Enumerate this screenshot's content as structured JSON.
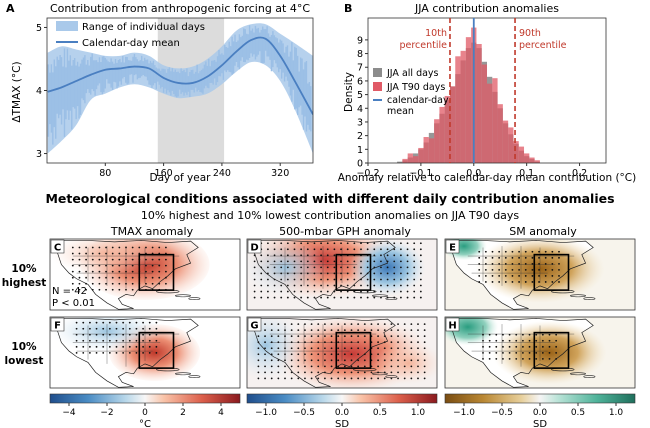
{
  "colors": {
    "range_fill": "#a9c9ea",
    "mean_line": "#4a7fc1",
    "shade": "#dcdcdc",
    "all_days": "#8c8c8c",
    "t90_days": "#e05a66",
    "percentile_line": "#c0392b",
    "zero_line": "#4a7fc1",
    "tmax_red": "#b2182b",
    "tmax_blue": "#2166ac",
    "sm_brown": "#a6711e",
    "sm_green": "#2a9d80"
  },
  "chart_data": [
    {
      "panel": "A",
      "type": "line",
      "title": "Contribution from anthropogenic forcing at 4°C",
      "xlabel": "Day of year",
      "ylabel": "ΔTMAX (°C)",
      "xlim": [
        0,
        365
      ],
      "ylim": [
        2.85,
        5.15
      ],
      "xticks": [
        80,
        160,
        240,
        320
      ],
      "yticks": [
        3,
        4,
        5
      ],
      "shaded_span": [
        152,
        243
      ],
      "legend": [
        "Range of individual days",
        "Calendar-day mean"
      ],
      "x": [
        1,
        20,
        40,
        60,
        80,
        100,
        120,
        140,
        160,
        180,
        200,
        220,
        240,
        260,
        280,
        300,
        320,
        340,
        365
      ],
      "series": [
        {
          "name": "Calendar-day mean",
          "values": [
            3.98,
            4.05,
            4.15,
            4.25,
            4.33,
            4.35,
            4.38,
            4.35,
            4.2,
            4.12,
            4.12,
            4.22,
            4.4,
            4.62,
            4.8,
            4.82,
            4.55,
            4.15,
            3.62
          ]
        },
        {
          "name": "Range of individual days (upper)",
          "values": [
            4.6,
            4.7,
            4.65,
            4.6,
            4.55,
            4.55,
            4.6,
            4.55,
            4.4,
            4.35,
            4.38,
            4.5,
            4.7,
            4.95,
            5.05,
            5.05,
            4.9,
            4.75,
            4.55
          ]
        },
        {
          "name": "Range of individual days (lower)",
          "values": [
            3.0,
            3.2,
            3.45,
            3.85,
            3.95,
            4.05,
            4.1,
            4.05,
            3.95,
            3.88,
            3.9,
            3.95,
            4.1,
            4.3,
            4.45,
            4.4,
            4.15,
            3.7,
            3.0
          ]
        }
      ]
    },
    {
      "panel": "B",
      "type": "bar",
      "title": "JJA contribution anomalies",
      "xlabel": "Anomaly relative to calendar-day mean contribution (°C)",
      "ylabel": "Density",
      "xlim": [
        -0.2,
        0.25
      ],
      "ylim": [
        0,
        10.6
      ],
      "xticks": [
        -0.2,
        -0.1,
        0.0,
        0.1,
        0.2
      ],
      "yticks": [
        0,
        1,
        2,
        3,
        4,
        5,
        6,
        7,
        8,
        9
      ],
      "legend": [
        "JJA all days",
        "JJA T90 days",
        "calendar-day mean"
      ],
      "percentiles": [
        {
          "label": "10th\npercentile",
          "x": -0.045
        },
        {
          "label": "90th\npercentile",
          "x": 0.078
        }
      ],
      "bin_width": 0.01,
      "categories": [
        -0.14,
        -0.13,
        -0.12,
        -0.11,
        -0.1,
        -0.09,
        -0.08,
        -0.07,
        -0.06,
        -0.05,
        -0.04,
        -0.03,
        -0.02,
        -0.01,
        0.0,
        0.01,
        0.02,
        0.03,
        0.04,
        0.05,
        0.06,
        0.07,
        0.08,
        0.09,
        0.1,
        0.11,
        0.12
      ],
      "series": [
        {
          "name": "JJA all days",
          "values": [
            0.1,
            0.2,
            0.4,
            0.7,
            1.0,
            1.5,
            2.2,
            2.9,
            3.6,
            4.6,
            5.6,
            6.5,
            7.5,
            8.4,
            8.8,
            8.4,
            7.4,
            6.3,
            5.2,
            4.0,
            2.9,
            2.1,
            1.4,
            0.9,
            0.5,
            0.3,
            0.1
          ]
        },
        {
          "name": "JJA T90 days",
          "values": [
            0.0,
            0.3,
            0.7,
            0.5,
            1.1,
            1.9,
            1.8,
            3.2,
            4.1,
            4.9,
            5.6,
            7.8,
            8.2,
            9.2,
            9.9,
            8.7,
            7.2,
            5.8,
            6.2,
            4.3,
            3.1,
            2.6,
            1.6,
            1.2,
            0.7,
            0.4,
            0.2
          ]
        }
      ]
    }
  ],
  "main_title": "Meteorological conditions associated with different daily contribution anomalies",
  "subtitle": "10% highest and 10% lowest contribution anomalies on JJA T90 days",
  "columns": [
    "TMAX anomaly",
    "500-mbar GPH anomaly",
    "SM anomaly"
  ],
  "rows": [
    "10%\nhighest",
    "10%\nlowest"
  ],
  "panel_letters": [
    "C",
    "D",
    "E",
    "F",
    "G",
    "H"
  ],
  "panel_a_letter": "A",
  "panel_b_letter": "B",
  "stats": {
    "n": "N = 42",
    "p": "P < 0.01"
  },
  "colorbars": [
    {
      "unit": "°C",
      "ticks": [
        "−4",
        "−2",
        "0",
        "2",
        "4"
      ],
      "range": [
        -5,
        5
      ],
      "scheme": "redblue"
    },
    {
      "unit": "SD",
      "ticks": [
        "−1.0",
        "−0.5",
        "0.0",
        "0.5",
        "1.0"
      ],
      "range": [
        -1.25,
        1.25
      ],
      "scheme": "redblue"
    },
    {
      "unit": "SD",
      "ticks": [
        "−1.0",
        "−0.5",
        "0.0",
        "0.5",
        "1.0"
      ],
      "range": [
        -1.25,
        1.25
      ],
      "scheme": "brbg"
    }
  ]
}
